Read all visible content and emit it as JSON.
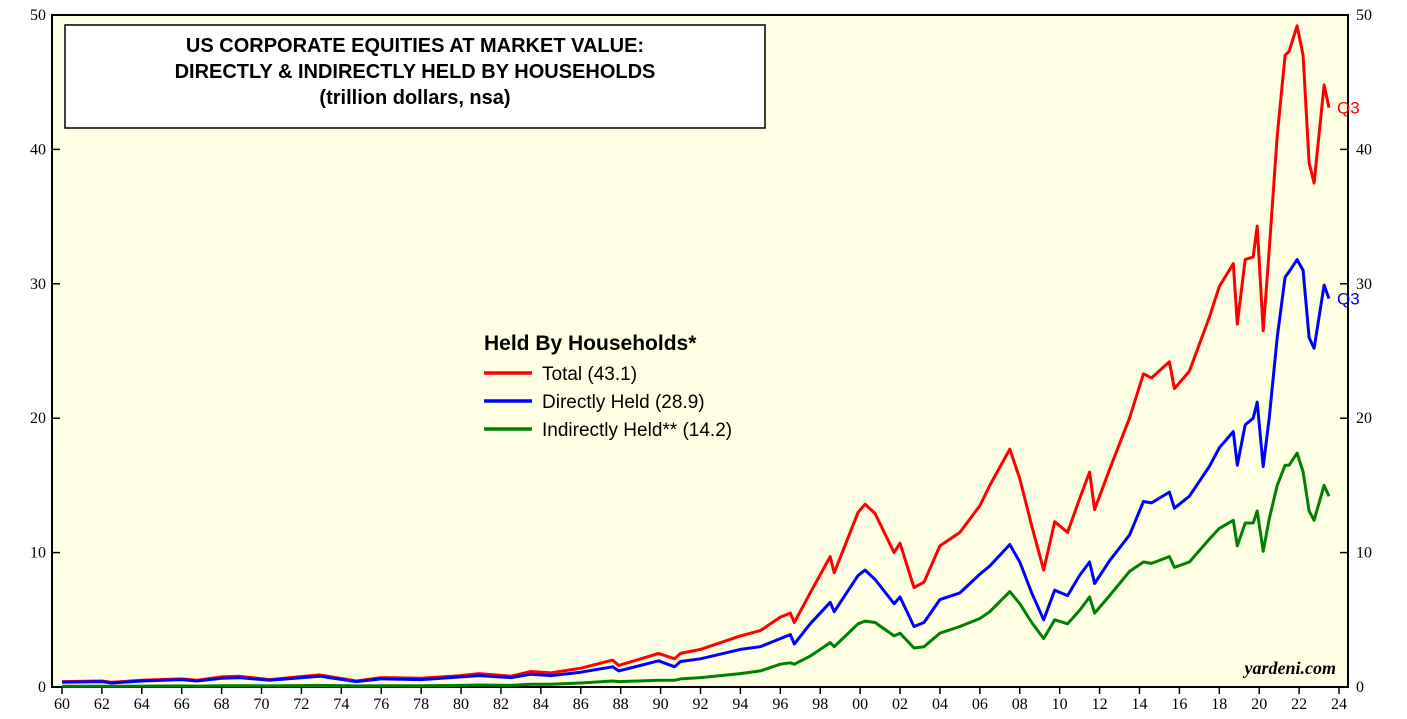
{
  "chart_data": {
    "type": "line",
    "title": [
      "US CORPORATE EQUITIES AT MARKET VALUE:",
      "DIRECTLY & INDIRECTLY HELD BY HOUSEHOLDS",
      "(trillion dollars, nsa)"
    ],
    "legend_title": "Held By Households*",
    "source": "yardeni.com",
    "x": [
      1960,
      1962,
      1962.5,
      1964,
      1966,
      1966.75,
      1968,
      1968.9,
      1970.4,
      1972.9,
      1974.75,
      1976,
      1978,
      1980,
      1980.9,
      1982.5,
      1983.5,
      1984.5,
      1986,
      1987.6,
      1987.9,
      1989.9,
      1990.7,
      1991,
      1992,
      1994,
      1995,
      1996,
      1996.5,
      1996.7,
      1997.5,
      1998.5,
      1998.7,
      1999.9,
      2000.25,
      2000.75,
      2001.7,
      2002,
      2002.7,
      2003.2,
      2004,
      2005,
      2006,
      2006.5,
      2007.5,
      2008,
      2008.6,
      2009.2,
      2009.75,
      2010.4,
      2011,
      2011.5,
      2011.75,
      2012.5,
      2013.5,
      2014.2,
      2014.6,
      2015.5,
      2015.75,
      2016.5,
      2017.5,
      2018,
      2018.7,
      2018.9,
      2019.3,
      2019.7,
      2019.9,
      2020.2,
      2020.5,
      2020.9,
      2021.3,
      2021.5,
      2021.9,
      2022.2,
      2022.5,
      2022.75,
      2023.25,
      2023.5
    ],
    "series": [
      {
        "name": "Total (43.1)",
        "color": "#ff0000",
        "end_label": "Q3",
        "values": [
          0.4,
          0.45,
          0.35,
          0.5,
          0.6,
          0.5,
          0.75,
          0.8,
          0.55,
          0.9,
          0.45,
          0.7,
          0.65,
          0.85,
          1.0,
          0.8,
          1.15,
          1.05,
          1.4,
          2.0,
          1.6,
          2.5,
          2.1,
          2.5,
          2.8,
          3.8,
          4.2,
          5.2,
          5.5,
          4.8,
          7.0,
          9.7,
          8.5,
          13.0,
          13.6,
          12.9,
          10.0,
          10.7,
          7.4,
          7.8,
          10.5,
          11.5,
          13.5,
          15.0,
          17.7,
          15.5,
          12.0,
          8.7,
          12.3,
          11.5,
          14.0,
          16.0,
          13.2,
          16.2,
          20.0,
          23.3,
          23.0,
          24.2,
          22.2,
          23.5,
          27.5,
          29.8,
          31.5,
          27.0,
          31.8,
          32.0,
          34.3,
          26.5,
          32.5,
          41.0,
          47.0,
          47.3,
          49.2,
          47.0,
          39.0,
          37.5,
          44.8,
          43.1
        ]
      },
      {
        "name": "Directly Held (28.9)",
        "color": "#0000ff",
        "end_label": "Q3",
        "values": [
          0.35,
          0.4,
          0.3,
          0.45,
          0.55,
          0.45,
          0.65,
          0.7,
          0.5,
          0.8,
          0.4,
          0.6,
          0.55,
          0.75,
          0.85,
          0.7,
          0.95,
          0.85,
          1.1,
          1.5,
          1.2,
          1.95,
          1.5,
          1.9,
          2.1,
          2.8,
          3.0,
          3.6,
          3.9,
          3.2,
          4.7,
          6.3,
          5.6,
          8.3,
          8.7,
          8.0,
          6.2,
          6.7,
          4.5,
          4.8,
          6.5,
          7.0,
          8.4,
          9.0,
          10.6,
          9.3,
          7.0,
          5.0,
          7.2,
          6.8,
          8.3,
          9.3,
          7.7,
          9.4,
          11.3,
          13.8,
          13.7,
          14.5,
          13.3,
          14.2,
          16.4,
          17.8,
          19.0,
          16.5,
          19.5,
          20.0,
          21.2,
          16.4,
          20.0,
          26.0,
          30.5,
          30.9,
          31.8,
          31.0,
          26.0,
          25.2,
          29.9,
          28.9
        ]
      },
      {
        "name": "Indirectly Held** (14.2)",
        "color": "#008000",
        "values": [
          0.05,
          0.05,
          0.05,
          0.07,
          0.08,
          0.07,
          0.1,
          0.1,
          0.08,
          0.12,
          0.08,
          0.1,
          0.1,
          0.12,
          0.15,
          0.12,
          0.2,
          0.2,
          0.3,
          0.45,
          0.4,
          0.5,
          0.5,
          0.6,
          0.7,
          1.0,
          1.2,
          1.7,
          1.8,
          1.7,
          2.3,
          3.3,
          3.0,
          4.7,
          4.9,
          4.8,
          3.8,
          4.0,
          2.9,
          3.0,
          4.0,
          4.5,
          5.1,
          5.6,
          7.1,
          6.2,
          4.8,
          3.6,
          5.0,
          4.7,
          5.7,
          6.7,
          5.5,
          6.8,
          8.6,
          9.3,
          9.2,
          9.7,
          8.9,
          9.3,
          11.0,
          11.8,
          12.4,
          10.5,
          12.2,
          12.2,
          13.1,
          10.1,
          12.5,
          15.0,
          16.5,
          16.5,
          17.4,
          16.0,
          13.1,
          12.4,
          15.0,
          14.2
        ]
      }
    ],
    "xlim": [
      1959.5,
      2024.45
    ],
    "xticks": [
      {
        "value": 1960,
        "label": "60"
      },
      {
        "value": 1962,
        "label": "62"
      },
      {
        "value": 1964,
        "label": "64"
      },
      {
        "value": 1966,
        "label": "66"
      },
      {
        "value": 1968,
        "label": "68"
      },
      {
        "value": 1970,
        "label": "70"
      },
      {
        "value": 1972,
        "label": "72"
      },
      {
        "value": 1974,
        "label": "74"
      },
      {
        "value": 1976,
        "label": "76"
      },
      {
        "value": 1978,
        "label": "78"
      },
      {
        "value": 1980,
        "label": "80"
      },
      {
        "value": 1982,
        "label": "82"
      },
      {
        "value": 1984,
        "label": "84"
      },
      {
        "value": 1986,
        "label": "86"
      },
      {
        "value": 1988,
        "label": "88"
      },
      {
        "value": 1990,
        "label": "90"
      },
      {
        "value": 1992,
        "label": "92"
      },
      {
        "value": 1994,
        "label": "94"
      },
      {
        "value": 1996,
        "label": "96"
      },
      {
        "value": 1998,
        "label": "98"
      },
      {
        "value": 2000,
        "label": "00"
      },
      {
        "value": 2002,
        "label": "02"
      },
      {
        "value": 2004,
        "label": "04"
      },
      {
        "value": 2006,
        "label": "06"
      },
      {
        "value": 2008,
        "label": "08"
      },
      {
        "value": 2010,
        "label": "10"
      },
      {
        "value": 2012,
        "label": "12"
      },
      {
        "value": 2014,
        "label": "14"
      },
      {
        "value": 2016,
        "label": "16"
      },
      {
        "value": 2018,
        "label": "18"
      },
      {
        "value": 2020,
        "label": "20"
      },
      {
        "value": 2022,
        "label": "22"
      },
      {
        "value": 2024,
        "label": "24"
      }
    ],
    "ylim": [
      0,
      50
    ],
    "yticks": [
      0,
      10,
      20,
      30,
      40,
      50
    ],
    "background": "#ffffe3"
  }
}
